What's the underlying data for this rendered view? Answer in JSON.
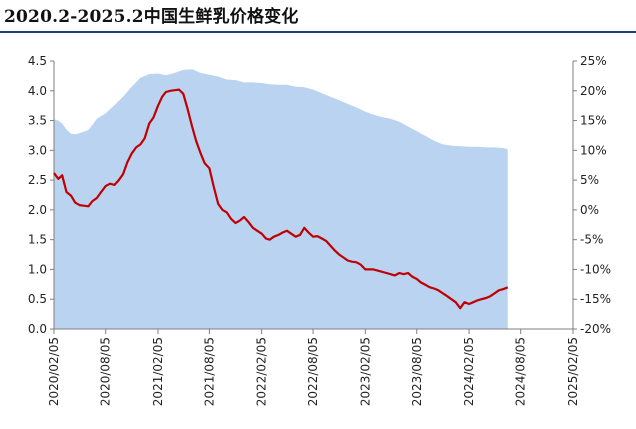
{
  "title": "2020.2-2025.2中国生鲜乳价格变化",
  "chart_data": {
    "type": "line",
    "x_tick_labels": [
      "2020/02/05",
      "2020/08/05",
      "2021/02/05",
      "2021/08/05",
      "2022/02/05",
      "2022/08/05",
      "2023/02/05",
      "2023/08/05",
      "2024/02/05",
      "2024/08/05",
      "2025/02/05"
    ],
    "y_left": {
      "ylim": [
        0,
        4.5
      ],
      "tick_labels": [
        "0.0",
        "0.5",
        "1.0",
        "1.5",
        "2.0",
        "2.5",
        "3.0",
        "3.5",
        "4.0",
        "4.5"
      ]
    },
    "y_right": {
      "ylim": [
        -20,
        25
      ],
      "tick_labels": [
        "-20%",
        "-15%",
        "-10%",
        "-5%",
        "0%",
        "5%",
        "10%",
        "15%",
        "20%",
        "25%"
      ]
    },
    "grid": false,
    "legend": "none",
    "series": [
      {
        "axis": "left",
        "style": "line",
        "color": "#c00000",
        "points": [
          [
            "2020/02/05",
            2.62
          ],
          [
            "2020/02/20",
            2.52
          ],
          [
            "2020/03/05",
            2.58
          ],
          [
            "2020/03/20",
            2.3
          ],
          [
            "2020/04/05",
            2.24
          ],
          [
            "2020/04/20",
            2.12
          ],
          [
            "2020/05/05",
            2.08
          ],
          [
            "2020/05/20",
            2.07
          ],
          [
            "2020/06/05",
            2.06
          ],
          [
            "2020/06/20",
            2.15
          ],
          [
            "2020/07/05",
            2.2
          ],
          [
            "2020/07/20",
            2.3
          ],
          [
            "2020/08/05",
            2.4
          ],
          [
            "2020/08/20",
            2.44
          ],
          [
            "2020/09/05",
            2.42
          ],
          [
            "2020/09/20",
            2.5
          ],
          [
            "2020/10/05",
            2.6
          ],
          [
            "2020/10/20",
            2.8
          ],
          [
            "2020/11/05",
            2.95
          ],
          [
            "2020/11/20",
            3.05
          ],
          [
            "2020/12/05",
            3.1
          ],
          [
            "2020/12/20",
            3.2
          ],
          [
            "2021/01/05",
            3.45
          ],
          [
            "2021/01/20",
            3.55
          ],
          [
            "2021/02/05",
            3.75
          ],
          [
            "2021/02/20",
            3.9
          ],
          [
            "2021/03/05",
            3.98
          ],
          [
            "2021/03/20",
            4.0
          ],
          [
            "2021/04/05",
            4.01
          ],
          [
            "2021/04/20",
            4.02
          ],
          [
            "2021/05/05",
            3.95
          ],
          [
            "2021/05/20",
            3.7
          ],
          [
            "2021/06/05",
            3.4
          ],
          [
            "2021/06/20",
            3.15
          ],
          [
            "2021/07/05",
            2.95
          ],
          [
            "2021/07/20",
            2.78
          ],
          [
            "2021/08/05",
            2.7
          ],
          [
            "2021/08/20",
            2.4
          ],
          [
            "2021/09/05",
            2.1
          ],
          [
            "2021/09/20",
            2.0
          ],
          [
            "2021/10/05",
            1.96
          ],
          [
            "2021/10/20",
            1.85
          ],
          [
            "2021/11/05",
            1.78
          ],
          [
            "2021/11/20",
            1.82
          ],
          [
            "2021/12/05",
            1.88
          ],
          [
            "2021/12/20",
            1.8
          ],
          [
            "2022/01/05",
            1.7
          ],
          [
            "2022/01/20",
            1.65
          ],
          [
            "2022/02/05",
            1.6
          ],
          [
            "2022/02/20",
            1.52
          ],
          [
            "2022/03/05",
            1.5
          ],
          [
            "2022/03/20",
            1.55
          ],
          [
            "2022/04/05",
            1.58
          ],
          [
            "2022/04/20",
            1.62
          ],
          [
            "2022/05/05",
            1.65
          ],
          [
            "2022/05/20",
            1.6
          ],
          [
            "2022/06/05",
            1.55
          ],
          [
            "2022/06/20",
            1.58
          ],
          [
            "2022/07/05",
            1.7
          ],
          [
            "2022/07/20",
            1.62
          ],
          [
            "2022/08/05",
            1.55
          ],
          [
            "2022/08/20",
            1.56
          ],
          [
            "2022/09/05",
            1.52
          ],
          [
            "2022/09/20",
            1.48
          ],
          [
            "2022/10/05",
            1.4
          ],
          [
            "2022/10/20",
            1.32
          ],
          [
            "2022/11/05",
            1.25
          ],
          [
            "2022/11/20",
            1.2
          ],
          [
            "2022/12/05",
            1.15
          ],
          [
            "2022/12/20",
            1.13
          ],
          [
            "2023/01/05",
            1.12
          ],
          [
            "2023/01/20",
            1.08
          ],
          [
            "2023/02/05",
            1.0
          ],
          [
            "2023/02/20",
            1.0
          ],
          [
            "2023/03/05",
            1.0
          ],
          [
            "2023/03/20",
            0.98
          ],
          [
            "2023/04/05",
            0.96
          ],
          [
            "2023/04/20",
            0.94
          ],
          [
            "2023/05/05",
            0.92
          ],
          [
            "2023/05/20",
            0.9
          ],
          [
            "2023/06/05",
            0.94
          ],
          [
            "2023/06/20",
            0.92
          ],
          [
            "2023/07/05",
            0.94
          ],
          [
            "2023/07/20",
            0.88
          ],
          [
            "2023/08/05",
            0.84
          ],
          [
            "2023/08/20",
            0.78
          ],
          [
            "2023/09/05",
            0.74
          ],
          [
            "2023/09/20",
            0.7
          ],
          [
            "2023/10/05",
            0.68
          ],
          [
            "2023/10/20",
            0.65
          ],
          [
            "2023/11/05",
            0.6
          ],
          [
            "2023/11/20",
            0.55
          ],
          [
            "2023/12/05",
            0.5
          ],
          [
            "2023/12/20",
            0.45
          ],
          [
            "2024/01/05",
            0.35
          ],
          [
            "2024/01/20",
            0.45
          ],
          [
            "2024/02/05",
            0.42
          ],
          [
            "2024/02/20",
            0.45
          ],
          [
            "2024/03/05",
            0.48
          ],
          [
            "2024/03/20",
            0.5
          ],
          [
            "2024/04/05",
            0.52
          ],
          [
            "2024/04/20",
            0.55
          ],
          [
            "2024/05/05",
            0.6
          ],
          [
            "2024/05/20",
            0.65
          ],
          [
            "2024/06/05",
            0.67
          ],
          [
            "2024/06/20",
            0.7
          ]
        ]
      },
      {
        "axis": "right",
        "style": "area",
        "color": "#b9d3f0",
        "points": [
          [
            "2020/02/05",
            15.2
          ],
          [
            "2020/02/20",
            15.0
          ],
          [
            "2020/03/05",
            14.5
          ],
          [
            "2020/03/20",
            13.5
          ],
          [
            "2020/04/05",
            12.8
          ],
          [
            "2020/04/20",
            12.7
          ],
          [
            "2020/05/05",
            12.9
          ],
          [
            "2020/06/05",
            13.4
          ],
          [
            "2020/06/20",
            14.3
          ],
          [
            "2020/07/05",
            15.3
          ],
          [
            "2020/08/05",
            16.2
          ],
          [
            "2020/09/05",
            17.6
          ],
          [
            "2020/10/05",
            19.0
          ],
          [
            "2020/11/05",
            20.7
          ],
          [
            "2020/12/05",
            22.2
          ],
          [
            "2021/01/05",
            22.8
          ],
          [
            "2021/02/05",
            22.9
          ],
          [
            "2021/03/05",
            22.6
          ],
          [
            "2021/04/05",
            23.0
          ],
          [
            "2021/05/05",
            23.5
          ],
          [
            "2021/06/05",
            23.6
          ],
          [
            "2021/07/05",
            23.0
          ],
          [
            "2021/08/05",
            22.7
          ],
          [
            "2021/09/05",
            22.4
          ],
          [
            "2021/10/05",
            21.9
          ],
          [
            "2021/11/05",
            21.8
          ],
          [
            "2021/12/05",
            21.4
          ],
          [
            "2022/01/05",
            21.4
          ],
          [
            "2022/02/05",
            21.3
          ],
          [
            "2022/03/05",
            21.1
          ],
          [
            "2022/04/05",
            21.0
          ],
          [
            "2022/05/05",
            21.0
          ],
          [
            "2022/06/05",
            20.7
          ],
          [
            "2022/07/05",
            20.6
          ],
          [
            "2022/08/05",
            20.2
          ],
          [
            "2022/09/05",
            19.6
          ],
          [
            "2022/10/05",
            19.0
          ],
          [
            "2022/11/05",
            18.4
          ],
          [
            "2022/12/05",
            17.8
          ],
          [
            "2023/01/05",
            17.2
          ],
          [
            "2023/02/05",
            16.5
          ],
          [
            "2023/03/05",
            16.0
          ],
          [
            "2023/04/05",
            15.6
          ],
          [
            "2023/05/05",
            15.3
          ],
          [
            "2023/06/05",
            14.8
          ],
          [
            "2023/07/05",
            14.0
          ],
          [
            "2023/08/05",
            13.2
          ],
          [
            "2023/09/05",
            12.4
          ],
          [
            "2023/10/05",
            11.6
          ],
          [
            "2023/11/05",
            11.0
          ],
          [
            "2023/12/05",
            10.8
          ],
          [
            "2024/01/05",
            10.7
          ],
          [
            "2024/02/05",
            10.6
          ],
          [
            "2024/03/05",
            10.6
          ],
          [
            "2024/04/05",
            10.5
          ],
          [
            "2024/05/05",
            10.5
          ],
          [
            "2024/06/05",
            10.4
          ],
          [
            "2024/06/20",
            10.2
          ]
        ]
      }
    ]
  }
}
